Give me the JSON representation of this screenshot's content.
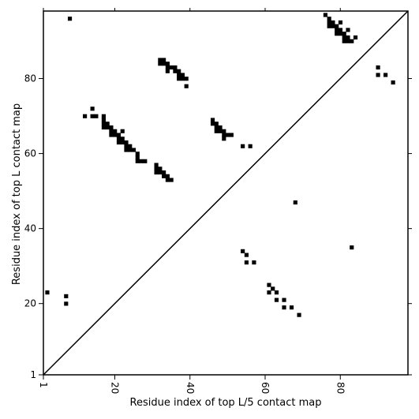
{
  "chart_data": {
    "type": "scatter",
    "title": "",
    "xlabel": "Residue index of top L/5 contact map",
    "ylabel": "Residue index of top L contact map",
    "xlim": [
      1,
      98
    ],
    "ylim": [
      1,
      98
    ],
    "xticks": [
      {
        "value": 1,
        "label": "1"
      },
      {
        "value": 20,
        "label": "20"
      },
      {
        "value": 40,
        "label": "40"
      },
      {
        "value": 60,
        "label": "60"
      },
      {
        "value": 80,
        "label": "80"
      }
    ],
    "yticks": [
      {
        "value": 1,
        "label": "1"
      },
      {
        "value": 20,
        "label": "20"
      },
      {
        "value": 40,
        "label": "40"
      },
      {
        "value": 60,
        "label": "60"
      },
      {
        "value": 80,
        "label": "80"
      }
    ],
    "diagonal": true,
    "grid": false,
    "upper_points": [
      [
        8,
        96
      ],
      [
        12,
        70
      ],
      [
        14,
        72
      ],
      [
        14,
        70
      ],
      [
        15,
        70
      ],
      [
        17,
        70
      ],
      [
        17,
        69
      ],
      [
        17,
        68
      ],
      [
        17,
        67
      ],
      [
        18,
        68
      ],
      [
        18,
        67
      ],
      [
        19,
        67
      ],
      [
        19,
        66
      ],
      [
        19,
        65
      ],
      [
        20,
        66
      ],
      [
        20,
        65
      ],
      [
        21,
        65
      ],
      [
        21,
        64
      ],
      [
        21,
        63
      ],
      [
        22,
        66
      ],
      [
        22,
        64
      ],
      [
        22,
        63
      ],
      [
        23,
        63
      ],
      [
        23,
        62
      ],
      [
        23,
        61
      ],
      [
        24,
        62
      ],
      [
        24,
        61
      ],
      [
        25,
        61
      ],
      [
        26,
        60
      ],
      [
        26,
        59
      ],
      [
        26,
        58
      ],
      [
        27,
        58
      ],
      [
        28,
        58
      ],
      [
        31,
        57
      ],
      [
        31,
        56
      ],
      [
        31,
        55
      ],
      [
        32,
        56
      ],
      [
        32,
        55
      ],
      [
        33,
        55
      ],
      [
        33,
        54
      ],
      [
        34,
        54
      ],
      [
        34,
        53
      ],
      [
        35,
        53
      ],
      [
        32,
        85
      ],
      [
        32,
        84
      ],
      [
        33,
        85
      ],
      [
        33,
        84
      ],
      [
        34,
        84
      ],
      [
        34,
        83
      ],
      [
        34,
        82
      ],
      [
        35,
        83
      ],
      [
        36,
        83
      ],
      [
        36,
        82
      ],
      [
        37,
        82
      ],
      [
        37,
        81
      ],
      [
        37,
        80
      ],
      [
        38,
        81
      ],
      [
        38,
        80
      ],
      [
        39,
        80
      ],
      [
        39,
        78
      ],
      [
        46,
        69
      ],
      [
        46,
        68
      ],
      [
        47,
        68
      ],
      [
        47,
        67
      ],
      [
        47,
        66
      ],
      [
        48,
        67
      ],
      [
        48,
        66
      ],
      [
        49,
        66
      ],
      [
        49,
        65
      ],
      [
        49,
        64
      ],
      [
        50,
        65
      ],
      [
        51,
        65
      ],
      [
        54,
        62
      ],
      [
        56,
        62
      ],
      [
        76,
        97
      ],
      [
        77,
        96
      ],
      [
        77,
        95
      ],
      [
        77,
        94
      ],
      [
        78,
        95
      ],
      [
        78,
        94
      ],
      [
        79,
        94
      ],
      [
        79,
        93
      ],
      [
        79,
        92
      ],
      [
        80,
        95
      ],
      [
        80,
        93
      ],
      [
        80,
        92
      ],
      [
        81,
        92
      ],
      [
        81,
        91
      ],
      [
        81,
        90
      ],
      [
        82,
        93
      ],
      [
        82,
        91
      ],
      [
        82,
        90
      ],
      [
        83,
        90
      ],
      [
        84,
        91
      ],
      [
        90,
        83
      ],
      [
        90,
        81
      ],
      [
        92,
        81
      ],
      [
        94,
        79
      ]
    ],
    "lower_points": [
      [
        2,
        23
      ],
      [
        7,
        22
      ],
      [
        7,
        20
      ],
      [
        54,
        34
      ],
      [
        55,
        33
      ],
      [
        55,
        31
      ],
      [
        57,
        31
      ],
      [
        61,
        25
      ],
      [
        61,
        23
      ],
      [
        62,
        24
      ],
      [
        63,
        23
      ],
      [
        63,
        21
      ],
      [
        65,
        21
      ],
      [
        65,
        19
      ],
      [
        67,
        19
      ],
      [
        69,
        17
      ],
      [
        68,
        47
      ],
      [
        83,
        35
      ]
    ]
  }
}
